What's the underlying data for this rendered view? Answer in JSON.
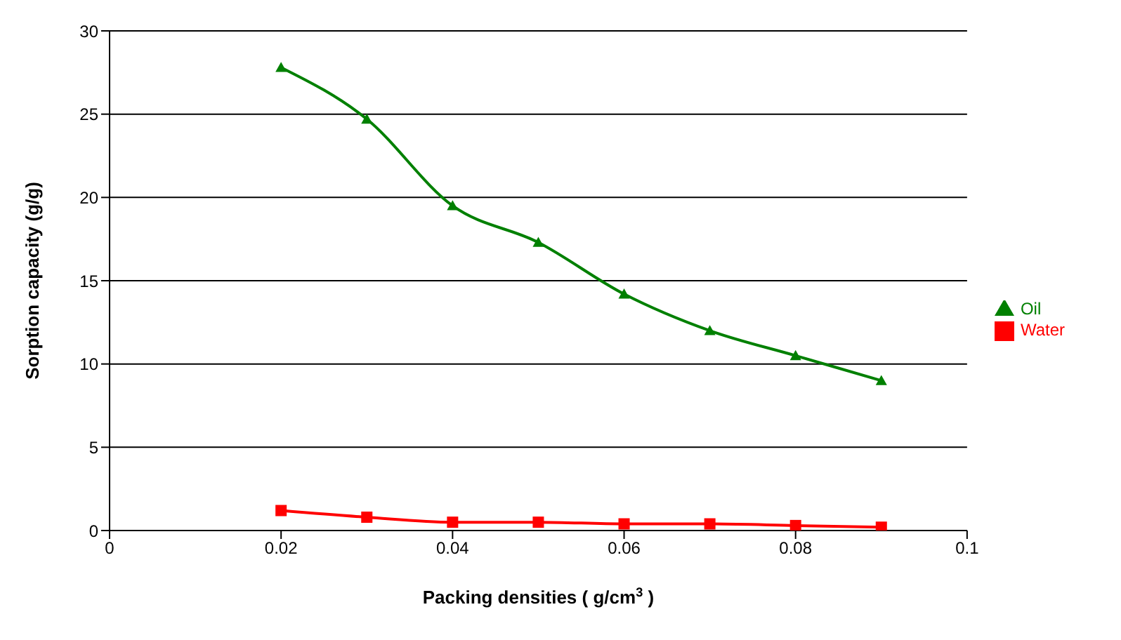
{
  "chart_data": {
    "type": "line",
    "xlabel": "Packing densities ( g/cm$^{3}$ )",
    "ylabel": "Sorption capacity (g/g)",
    "x": [
      0.02,
      0.03,
      0.04,
      0.05,
      0.06,
      0.07,
      0.08,
      0.09
    ],
    "series": [
      {
        "name": "Oil",
        "color": "#008000",
        "marker": "triangle",
        "values": [
          27.8,
          24.7,
          19.5,
          17.3,
          14.2,
          12.0,
          10.5,
          9.0
        ]
      },
      {
        "name": "Water",
        "color": "#ff0000",
        "marker": "square",
        "values": [
          1.2,
          0.8,
          0.5,
          0.5,
          0.4,
          0.4,
          0.3,
          0.2
        ]
      }
    ],
    "xlim": [
      0,
      0.1
    ],
    "xticks": [
      0,
      0.02,
      0.04,
      0.06,
      0.08,
      0.1
    ],
    "ylim": [
      0,
      30
    ],
    "yticks": [
      0,
      5,
      10,
      15,
      20,
      25,
      30
    ],
    "grid": "y",
    "legend": "right",
    "line_style": "solid"
  }
}
